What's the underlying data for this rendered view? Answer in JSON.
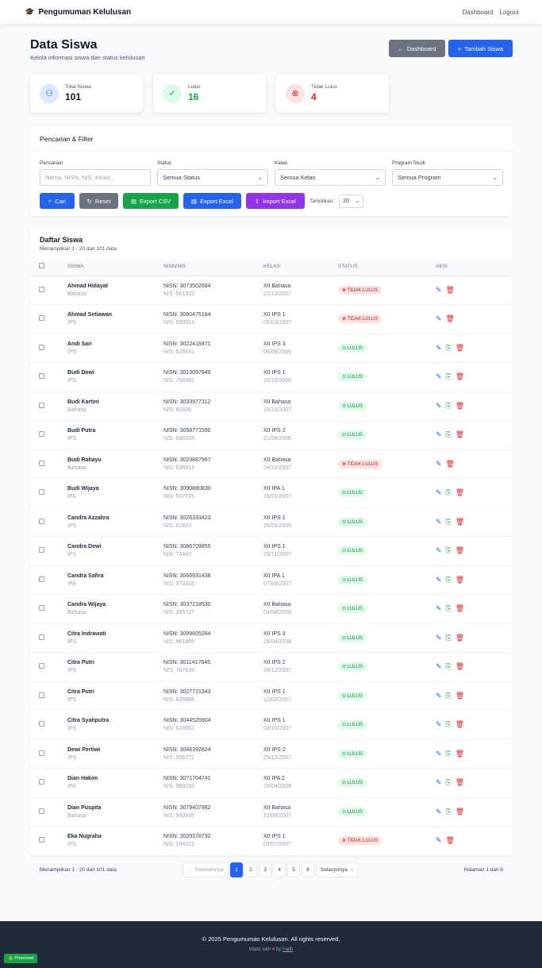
{
  "nav": {
    "brand": "Pengumuman Kelulusan",
    "links": [
      "Dashboard",
      "Logout"
    ]
  },
  "header": {
    "title": "Data Siswa",
    "subtitle": "Kelola informasi siswa dan status kelulusan",
    "dashboard_btn": "Dashboard",
    "add_btn": "Tambah Siswa"
  },
  "stats": [
    {
      "label": "Total Siswa",
      "value": "101"
    },
    {
      "label": "Lulus",
      "value": "16"
    },
    {
      "label": "Tidak Lulus",
      "value": "4"
    }
  ],
  "filter": {
    "title": "Pencarian & Filter",
    "search_label": "Pencarian",
    "search_placeholder": "Nama, NISN, NIS, Kelas...",
    "status_label": "Status",
    "status_value": "Semua Status",
    "kelas_label": "Kelas",
    "kelas_value": "Semua Kelas",
    "program_label": "Program Studi",
    "program_value": "Semua Program",
    "buttons": {
      "cari": "Cari",
      "reset": "Reset",
      "csv": "Export CSV",
      "excel": "Export Excel",
      "import": "Import Excel"
    },
    "show_label": "Tampilkan:",
    "show_value": "20"
  },
  "table": {
    "title": "Daftar Siswa",
    "info": "Menampilkan 1 - 20 dari 101 data",
    "headers": [
      "SISWA",
      "NISN/NIS",
      "KELAS",
      "STATUS",
      "AKSI"
    ],
    "rows": [
      [
        "Ahmad Hidayat",
        "Bahasa",
        "NISN: 3073502684",
        "NIS: 561315",
        "XII Bahasa",
        "22/10/2007",
        "TIDAK LULUS"
      ],
      [
        "Ahmad Setiawan",
        "IPS",
        "NISN: 3060475184",
        "NIS: 660913",
        "XII IPS 1",
        "05/03/2007",
        "TIDAK LULUS"
      ],
      [
        "Andi Sari",
        "IPS",
        "NISN: 3022418471",
        "NIS: 625641",
        "XII IPS 3",
        "08/08/2006",
        "LULUS"
      ],
      [
        "Budi Dewi",
        "IPS",
        "NISN: 3013097949",
        "NIS: 758391",
        "XII IPS 1",
        "10/10/2006",
        "LULUS"
      ],
      [
        "Budi Kartini",
        "Bahasa",
        "NISN: 3033977312",
        "NIS: 62926",
        "XII Bahasa",
        "19/10/2007",
        "LULUS"
      ],
      [
        "Budi Putra",
        "IPS",
        "NISN: 3058771590",
        "NIS: 696939",
        "XII IPS 2",
        "21/06/2006",
        "LULUS"
      ],
      [
        "Budi Rahayu",
        "Bahasa",
        "NISN: 3023887967",
        "NIS: 536914",
        "XII Bahasa",
        "24/10/2007",
        "TIDAK LULUS"
      ],
      [
        "Budi Wijaya",
        "IPA",
        "NISN: 3090880830",
        "NIS: 507726",
        "XII IPA 1",
        "16/01/2007",
        "LULUS"
      ],
      [
        "Candra Azzahra",
        "IPS",
        "NISN: 3026333423",
        "NIS: 62623",
        "XII IPS 1",
        "26/05/2008",
        "LULUS"
      ],
      [
        "Candra Dewi",
        "IPS",
        "NISN: 3086709855",
        "NIS: 76440",
        "XII IPS 1",
        "28/11/2007",
        "LULUS"
      ],
      [
        "Candra Safira",
        "IPA",
        "NISN: 3066931438",
        "NIS: 973316",
        "XII IPA 1",
        "07/09/2007",
        "LULUS"
      ],
      [
        "Candra Wijaya",
        "Bahasa",
        "NISN: 3037218530",
        "NIS: 395727",
        "XII Bahasa",
        "03/04/2008",
        "LULUS"
      ],
      [
        "Citra Indrawati",
        "IPS",
        "NISN: 3099605284",
        "NIS: 861865",
        "XII IPS 3",
        "28/04/2008",
        "LULUS"
      ],
      [
        "Citra Putri",
        "IPS",
        "NISN: 3011417645",
        "NIS: 767639",
        "XII IPS 2",
        "29/12/2007",
        "LULUS"
      ],
      [
        "Citra Putri",
        "IPS",
        "NISN: 3027721343",
        "NIS: 839986",
        "XII IPS 1",
        "12/03/2007",
        "LULUS"
      ],
      [
        "Citra Syahputra",
        "IPS",
        "NISN: 3044525904",
        "NIS: 624862",
        "XII IPS 1",
        "03/10/2007",
        "LULUS"
      ],
      [
        "Dewi Pertiwi",
        "IPS",
        "NISN: 3046392824",
        "NIS: 955272",
        "XII IPS 2",
        "25/12/2007",
        "LULUS"
      ],
      [
        "Dian Hakim",
        "IPA",
        "NISN: 3071704741",
        "NIS: 969233",
        "XII IPA 2",
        "24/04/2008",
        "LULUS"
      ],
      [
        "Dian Puspita",
        "Bahasa",
        "NISN: 3079407982",
        "NIS: 990935",
        "XII Bahasa",
        "22/09/2007",
        "LULUS"
      ],
      [
        "Eka Nugraha",
        "IPS",
        "NISN: 3029378732",
        "NIS: 184313",
        "XII IPS 1",
        "03/07/2007",
        "TIDAK LULUS"
      ]
    ]
  },
  "pagination": {
    "info": "Menampilkan 1 - 20 dari 101 data",
    "prev": "← Sebelumnya",
    "pages": [
      "1",
      "2",
      "3",
      "4",
      "5",
      "6"
    ],
    "current": "1",
    "next": "Selanjutnya →",
    "page_of": "Halaman 1 dari 6"
  },
  "footer": {
    "copyright": "© 2025 Pengumuman Kelulusan. All rights reserved.",
    "made_with": "Made with",
    "by": "by",
    "author": "Fatih"
  },
  "badge": "Protected"
}
